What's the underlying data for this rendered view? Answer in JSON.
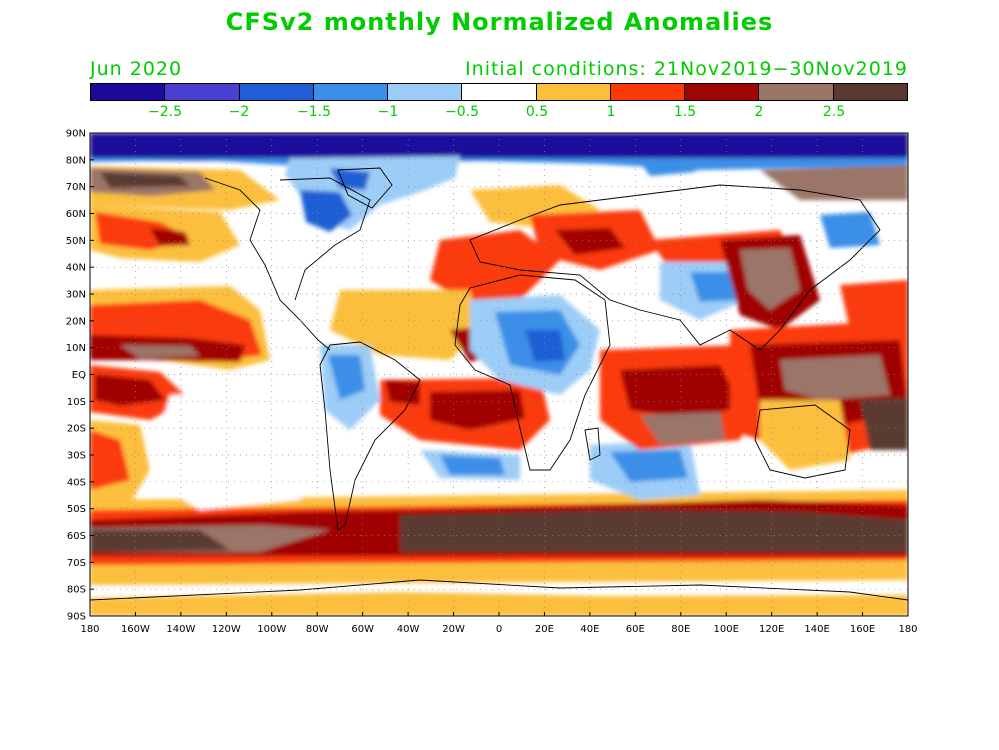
{
  "title": "CFSv2 monthly Normalized Anomalies",
  "month": "Jun 2020",
  "initial_conditions": "Initial conditions: 21Nov2019−30Nov2019",
  "colorbar": {
    "colors": [
      "#1e0a9a",
      "#4a3fd0",
      "#1f5ed4",
      "#3b8fe8",
      "#9ccdf7",
      "#ffffff",
      "#fbbf3c",
      "#fb3a0a",
      "#a00505",
      "#9b7468",
      "#5a3a30"
    ],
    "labels": [
      "−2.5",
      "−2",
      "−1.5",
      "−1",
      "−0.5",
      "0.5",
      "1",
      "1.5",
      "2",
      "2.5"
    ]
  },
  "map": {
    "lat_labels": [
      "90N",
      "80N",
      "70N",
      "60N",
      "50N",
      "40N",
      "30N",
      "20N",
      "10N",
      "EQ",
      "10S",
      "20S",
      "30S",
      "40S",
      "50S",
      "60S",
      "70S",
      "80S",
      "90S"
    ],
    "lon_labels": [
      "180",
      "160W",
      "140W",
      "120W",
      "100W",
      "80W",
      "60W",
      "40W",
      "20W",
      "0",
      "20E",
      "40E",
      "60E",
      "80E",
      "100E",
      "120E",
      "140E",
      "160E",
      "180"
    ]
  }
}
